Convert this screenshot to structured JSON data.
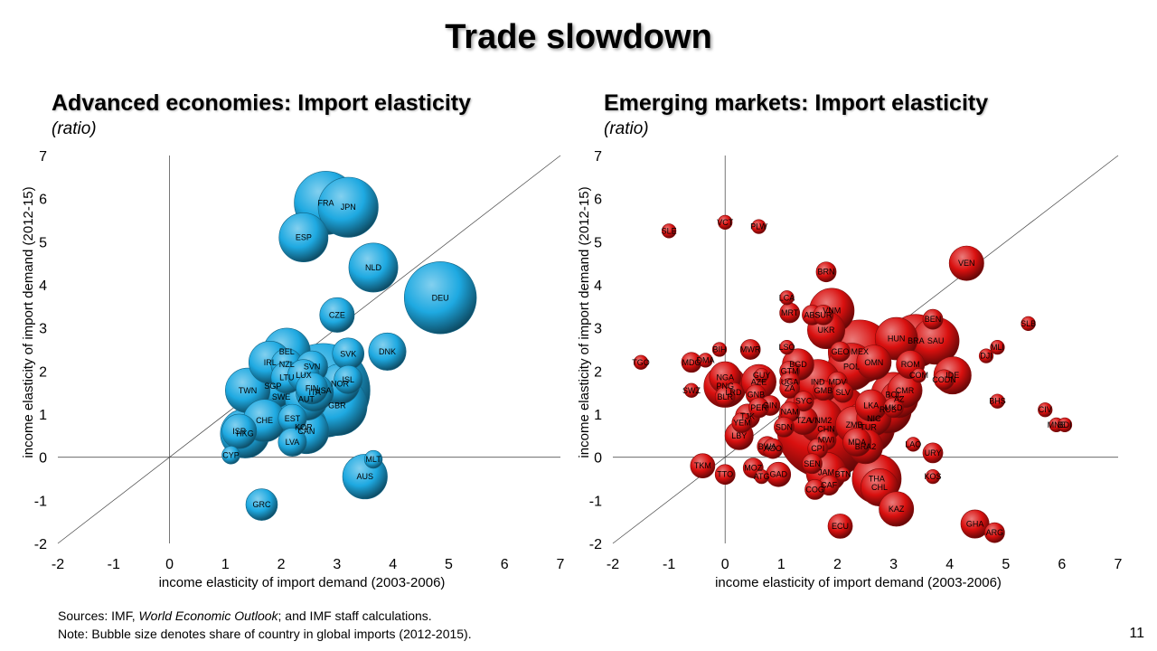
{
  "slide": {
    "title": "Trade slowdown",
    "sources_prefix": "Sources: IMF, ",
    "sources_italic": "World Economic Outlook",
    "sources_suffix": "; and IMF staff calculations.",
    "note": "Note: Bubble size denotes share of country in global imports (2012-2015).",
    "page_number": "11"
  },
  "colors": {
    "advanced": "#1ea9e1",
    "emerging": "#d9100f",
    "axis": "#555555"
  },
  "chart_data": [
    {
      "type": "scatter",
      "title": "Advanced economies: Import elasticity",
      "subtitle": "(ratio)",
      "xlabel": "income elasticity of import demand (2003-2006)",
      "ylabel": "income elasticity of import demand (2012-15)",
      "xlim": [
        -2,
        7
      ],
      "ylim": [
        -2,
        7
      ],
      "xticks": [
        "-2",
        "-1",
        "0",
        "1",
        "2",
        "3",
        "4",
        "5",
        "6",
        "7"
      ],
      "yticks": [
        "-2",
        "-1",
        "0",
        "1",
        "2",
        "3",
        "4",
        "5",
        "6",
        "7"
      ],
      "reference_line": "45-degree",
      "points": [
        {
          "label": "FRA",
          "x": 2.8,
          "y": 5.9,
          "size": 1.0
        },
        {
          "label": "JPN",
          "x": 3.2,
          "y": 5.8,
          "size": 0.9
        },
        {
          "label": "ESP",
          "x": 2.4,
          "y": 5.1,
          "size": 0.6
        },
        {
          "label": "NLD",
          "x": 3.65,
          "y": 4.4,
          "size": 0.6
        },
        {
          "label": "DEU",
          "x": 4.85,
          "y": 3.7,
          "size": 1.3
        },
        {
          "label": "CZE",
          "x": 3.0,
          "y": 3.3,
          "size": 0.3
        },
        {
          "label": "DNK",
          "x": 3.9,
          "y": 2.45,
          "size": 0.35
        },
        {
          "label": "SVK",
          "x": 3.2,
          "y": 2.4,
          "size": 0.25
        },
        {
          "label": "USA",
          "x": 2.75,
          "y": 1.55,
          "size": 2.2
        },
        {
          "label": "BEL",
          "x": 2.1,
          "y": 2.45,
          "size": 0.55
        },
        {
          "label": "IRL",
          "x": 1.8,
          "y": 2.2,
          "size": 0.45
        },
        {
          "label": "NZL",
          "x": 2.1,
          "y": 2.15,
          "size": 0.25
        },
        {
          "label": "SVN",
          "x": 2.55,
          "y": 2.1,
          "size": 0.25
        },
        {
          "label": "LTU",
          "x": 2.1,
          "y": 1.85,
          "size": 0.25
        },
        {
          "label": "LUX",
          "x": 2.4,
          "y": 1.9,
          "size": 0.25
        },
        {
          "label": "SGP",
          "x": 1.85,
          "y": 1.65,
          "size": 0.5
        },
        {
          "label": "ISL",
          "x": 3.2,
          "y": 1.8,
          "size": 0.2
        },
        {
          "label": "NOR",
          "x": 3.05,
          "y": 1.7,
          "size": 0.4
        },
        {
          "label": "FIN",
          "x": 2.55,
          "y": 1.6,
          "size": 0.25
        },
        {
          "label": "ITA",
          "x": 2.6,
          "y": 1.5,
          "size": 0.35
        },
        {
          "label": "TWN",
          "x": 1.4,
          "y": 1.55,
          "size": 0.5
        },
        {
          "label": "SWE",
          "x": 2.0,
          "y": 1.4,
          "size": 0.55
        },
        {
          "label": "AUT",
          "x": 2.45,
          "y": 1.35,
          "size": 0.45
        },
        {
          "label": "GBR",
          "x": 3.0,
          "y": 1.2,
          "size": 0.9
        },
        {
          "label": "EST",
          "x": 2.2,
          "y": 0.9,
          "size": 0.2
        },
        {
          "label": "CHE",
          "x": 1.7,
          "y": 0.85,
          "size": 0.45
        },
        {
          "label": "KOR",
          "x": 2.4,
          "y": 0.7,
          "size": 0.55
        },
        {
          "label": "CAN",
          "x": 2.45,
          "y": 0.6,
          "size": 0.5
        },
        {
          "label": "HKG",
          "x": 1.35,
          "y": 0.55,
          "size": 0.6
        },
        {
          "label": "ISR",
          "x": 1.25,
          "y": 0.6,
          "size": 0.3
        },
        {
          "label": "LVA",
          "x": 2.2,
          "y": 0.35,
          "size": 0.2
        },
        {
          "label": "CYP",
          "x": 1.1,
          "y": 0.05,
          "size": 0.08
        },
        {
          "label": "MLT",
          "x": 3.65,
          "y": -0.05,
          "size": 0.08
        },
        {
          "label": "AUS",
          "x": 3.5,
          "y": -0.45,
          "size": 0.5
        },
        {
          "label": "GRC",
          "x": 1.65,
          "y": -1.1,
          "size": 0.25
        }
      ]
    },
    {
      "type": "scatter",
      "title": "Emerging markets: Import elasticity",
      "subtitle": "(ratio)",
      "xlabel": "income elasticity of import demand (2003-2006)",
      "ylabel": "income elasticity of import demand (2012-15)",
      "xlim": [
        -2,
        7
      ],
      "ylim": [
        -2,
        7
      ],
      "xticks": [
        "-2",
        "-1",
        "0",
        "1",
        "2",
        "3",
        "4",
        "5",
        "6",
        "7"
      ],
      "yticks": [
        "-2",
        "-1",
        "0",
        "1",
        "2",
        "3",
        "4",
        "5",
        "6",
        "7"
      ],
      "reference_line": "45-degree",
      "points": [
        {
          "label": "SLE",
          "x": -1.0,
          "y": 5.25,
          "size": 0.05
        },
        {
          "label": "VCT",
          "x": 0.0,
          "y": 5.45,
          "size": 0.05
        },
        {
          "label": "PLW",
          "x": 0.6,
          "y": 5.35,
          "size": 0.05
        },
        {
          "label": "VEN",
          "x": 4.3,
          "y": 4.5,
          "size": 0.3
        },
        {
          "label": "BRN",
          "x": 1.8,
          "y": 4.3,
          "size": 0.1
        },
        {
          "label": "LCA",
          "x": 1.1,
          "y": 3.7,
          "size": 0.05
        },
        {
          "label": "VNM",
          "x": 1.9,
          "y": 3.4,
          "size": 0.5
        },
        {
          "label": "MRT",
          "x": 1.15,
          "y": 3.35,
          "size": 0.1
        },
        {
          "label": "ABS",
          "x": 1.55,
          "y": 3.3,
          "size": 0.1
        },
        {
          "label": "SUR",
          "x": 1.75,
          "y": 3.3,
          "size": 0.1
        },
        {
          "label": "BEN",
          "x": 3.7,
          "y": 3.2,
          "size": 0.1
        },
        {
          "label": "SLB",
          "x": 5.4,
          "y": 3.1,
          "size": 0.05
        },
        {
          "label": "UKR",
          "x": 1.8,
          "y": 2.95,
          "size": 0.35
        },
        {
          "label": "HUN",
          "x": 3.05,
          "y": 2.75,
          "size": 0.45
        },
        {
          "label": "BRA",
          "x": 3.4,
          "y": 2.7,
          "size": 0.7
        },
        {
          "label": "SAU",
          "x": 3.75,
          "y": 2.7,
          "size": 0.55
        },
        {
          "label": "BIH",
          "x": -0.1,
          "y": 2.5,
          "size": 0.05
        },
        {
          "label": "MWR",
          "x": 0.45,
          "y": 2.5,
          "size": 0.1
        },
        {
          "label": "LSO",
          "x": 1.1,
          "y": 2.55,
          "size": 0.05
        },
        {
          "label": "GEO",
          "x": 2.05,
          "y": 2.45,
          "size": 0.1
        },
        {
          "label": "MEX",
          "x": 2.4,
          "y": 2.45,
          "size": 1.0
        },
        {
          "label": "MLI",
          "x": 4.85,
          "y": 2.55,
          "size": 0.05
        },
        {
          "label": "DJI",
          "x": 4.65,
          "y": 2.35,
          "size": 0.05
        },
        {
          "label": "MDG",
          "x": -0.6,
          "y": 2.2,
          "size": 0.1
        },
        {
          "label": "DMA",
          "x": -0.35,
          "y": 2.25,
          "size": 0.05
        },
        {
          "label": "TGO",
          "x": -1.5,
          "y": 2.2,
          "size": 0.05
        },
        {
          "label": "POL",
          "x": 2.25,
          "y": 2.1,
          "size": 0.55
        },
        {
          "label": "OMN",
          "x": 2.65,
          "y": 2.2,
          "size": 0.3
        },
        {
          "label": "ROM",
          "x": 3.3,
          "y": 2.15,
          "size": 0.2
        },
        {
          "label": "BGD",
          "x": 1.3,
          "y": 2.15,
          "size": 0.25
        },
        {
          "label": "GTM",
          "x": 1.15,
          "y": 2.0,
          "size": 0.1
        },
        {
          "label": "GUY",
          "x": 0.65,
          "y": 1.9,
          "size": 0.05
        },
        {
          "label": "IDE",
          "x": 4.05,
          "y": 1.9,
          "size": 0.35
        },
        {
          "label": "COM",
          "x": 3.45,
          "y": 1.9,
          "size": 0.05
        },
        {
          "label": "CODN",
          "x": 3.9,
          "y": 1.8,
          "size": 0.1
        },
        {
          "label": "NGA",
          "x": 0.0,
          "y": 1.85,
          "size": 0.25
        },
        {
          "label": "AZE",
          "x": 0.6,
          "y": 1.75,
          "size": 0.3
        },
        {
          "label": "UGA",
          "x": 1.15,
          "y": 1.75,
          "size": 0.1
        },
        {
          "label": "IND",
          "x": 1.65,
          "y": 1.75,
          "size": 0.5
        },
        {
          "label": "MDV",
          "x": 2.0,
          "y": 1.75,
          "size": 0.1
        },
        {
          "label": "PNG",
          "x": 0.0,
          "y": 1.65,
          "size": 0.45
        },
        {
          "label": "ZA",
          "x": 1.15,
          "y": 1.6,
          "size": 0.1
        },
        {
          "label": "GMB",
          "x": 1.75,
          "y": 1.55,
          "size": 0.1
        },
        {
          "label": "SWZ",
          "x": -0.6,
          "y": 1.55,
          "size": 0.05
        },
        {
          "label": "SLV",
          "x": 2.1,
          "y": 1.5,
          "size": 0.1
        },
        {
          "label": "BOL",
          "x": 3.0,
          "y": 1.45,
          "size": 0.5
        },
        {
          "label": "CMR",
          "x": 3.2,
          "y": 1.55,
          "size": 0.3
        },
        {
          "label": "LRD",
          "x": 0.15,
          "y": 1.5,
          "size": 0.1
        },
        {
          "label": "BLR",
          "x": 0.0,
          "y": 1.4,
          "size": 0.1
        },
        {
          "label": "GNB",
          "x": 0.55,
          "y": 1.45,
          "size": 0.1
        },
        {
          "label": "CHN",
          "x": 1.8,
          "y": 0.65,
          "size": 2.4
        },
        {
          "label": "SYC",
          "x": 1.4,
          "y": 1.3,
          "size": 0.1
        },
        {
          "label": "AZ",
          "x": 3.1,
          "y": 1.35,
          "size": 0.35
        },
        {
          "label": "LKA",
          "x": 2.6,
          "y": 1.2,
          "size": 0.25
        },
        {
          "label": "MKD",
          "x": 3.0,
          "y": 1.15,
          "size": 0.1
        },
        {
          "label": "RUS",
          "x": 2.9,
          "y": 1.1,
          "size": 0.55
        },
        {
          "label": "NIC",
          "x": 2.65,
          "y": 0.9,
          "size": 0.3
        },
        {
          "label": "BHS",
          "x": 4.85,
          "y": 1.3,
          "size": 0.05
        },
        {
          "label": "CIV",
          "x": 5.7,
          "y": 1.1,
          "size": 0.05
        },
        {
          "label": "MNE",
          "x": 5.9,
          "y": 0.75,
          "size": 0.05
        },
        {
          "label": "BDI",
          "x": 6.05,
          "y": 0.75,
          "size": 0.05
        },
        {
          "label": "GIN",
          "x": 0.8,
          "y": 1.2,
          "size": 0.1
        },
        {
          "label": "PER",
          "x": 0.6,
          "y": 1.15,
          "size": 0.1
        },
        {
          "label": "NAM",
          "x": 1.15,
          "y": 1.05,
          "size": 0.1
        },
        {
          "label": "TJK",
          "x": 0.4,
          "y": 0.95,
          "size": 0.15
        },
        {
          "label": "YEM",
          "x": 0.3,
          "y": 0.8,
          "size": 0.1
        },
        {
          "label": "TZA",
          "x": 1.4,
          "y": 0.85,
          "size": 0.2
        },
        {
          "label": "VNM2",
          "x": 1.7,
          "y": 0.85,
          "size": 0.5
        },
        {
          "label": "SDN",
          "x": 1.05,
          "y": 0.7,
          "size": 0.1
        },
        {
          "label": "ZMB",
          "x": 2.3,
          "y": 0.75,
          "size": 0.35
        },
        {
          "label": "TUR",
          "x": 2.55,
          "y": 0.7,
          "size": 0.7
        },
        {
          "label": "MDA",
          "x": 2.35,
          "y": 0.35,
          "size": 0.2
        },
        {
          "label": "BRA2",
          "x": 2.5,
          "y": 0.25,
          "size": 0.3
        },
        {
          "label": "MWI",
          "x": 1.8,
          "y": 0.4,
          "size": 0.1
        },
        {
          "label": "CPI",
          "x": 1.65,
          "y": 0.2,
          "size": 0.1
        },
        {
          "label": "LBY",
          "x": 0.25,
          "y": 0.5,
          "size": 0.2
        },
        {
          "label": "BWA",
          "x": 0.75,
          "y": 0.25,
          "size": 0.1
        },
        {
          "label": "AGO",
          "x": 0.85,
          "y": 0.2,
          "size": 0.1
        },
        {
          "label": "LAO",
          "x": 3.35,
          "y": 0.3,
          "size": 0.05
        },
        {
          "label": "URY",
          "x": 3.7,
          "y": 0.1,
          "size": 0.1
        },
        {
          "label": "SEN",
          "x": 1.55,
          "y": -0.15,
          "size": 0.1
        },
        {
          "label": "TKM",
          "x": -0.4,
          "y": -0.2,
          "size": 0.15
        },
        {
          "label": "MOZ",
          "x": 0.5,
          "y": -0.25,
          "size": 0.1
        },
        {
          "label": "TTO",
          "x": 0.0,
          "y": -0.4,
          "size": 0.1
        },
        {
          "label": "ATG",
          "x": 0.65,
          "y": -0.45,
          "size": 0.05
        },
        {
          "label": "GAD",
          "x": 0.95,
          "y": -0.4,
          "size": 0.15
        },
        {
          "label": "JAM",
          "x": 1.8,
          "y": -0.35,
          "size": 0.4
        },
        {
          "label": "BTN",
          "x": 2.1,
          "y": -0.4,
          "size": 0.05
        },
        {
          "label": "KOS",
          "x": 3.7,
          "y": -0.45,
          "size": 0.05
        },
        {
          "label": "CAF",
          "x": 1.85,
          "y": -0.65,
          "size": 0.1
        },
        {
          "label": "THA",
          "x": 2.7,
          "y": -0.5,
          "size": 0.6
        },
        {
          "label": "CHL",
          "x": 2.75,
          "y": -0.7,
          "size": 0.35
        },
        {
          "label": "COG",
          "x": 1.6,
          "y": -0.75,
          "size": 0.1
        },
        {
          "label": "KAZ",
          "x": 3.05,
          "y": -1.2,
          "size": 0.3
        },
        {
          "label": "ECU",
          "x": 2.05,
          "y": -1.6,
          "size": 0.15
        },
        {
          "label": "GHA",
          "x": 4.45,
          "y": -1.55,
          "size": 0.2
        },
        {
          "label": "ARG",
          "x": 4.8,
          "y": -1.75,
          "size": 0.1
        }
      ]
    }
  ]
}
